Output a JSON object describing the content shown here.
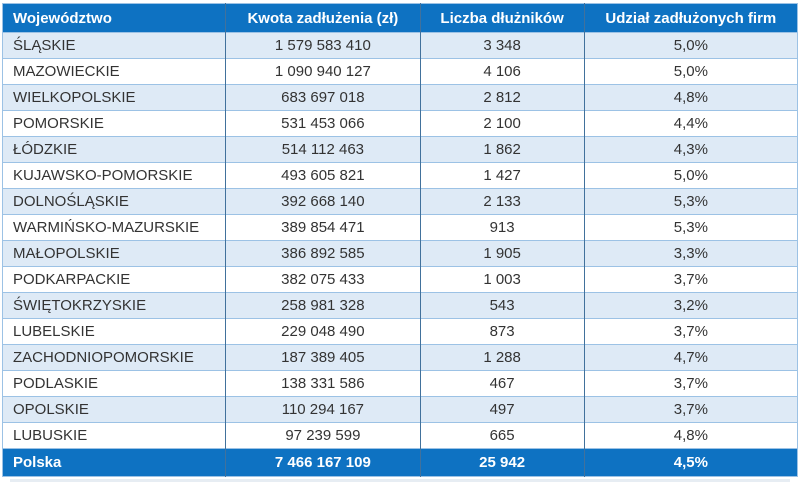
{
  "colors": {
    "header_bg": "#0e72c2",
    "footer_bg": "#0e72c2",
    "band_row_bg": "#deeaf6",
    "plain_row_bg": "#ffffff",
    "grid_horizontal": "#9cc2e5",
    "grid_vertical": "#41719c",
    "header_text": "#ffffff",
    "body_text": "#333333"
  },
  "table": {
    "columns": [
      "Województwo",
      "Kwota zadłużenia (zł)",
      "Liczba dłużników",
      "Udział zadłużonych firm"
    ],
    "rows": [
      {
        "name": "ŚLĄSKIE",
        "amount": "1 579 583 410",
        "debtors": "3 348",
        "share": "5,0%"
      },
      {
        "name": "MAZOWIECKIE",
        "amount": "1 090 940 127",
        "debtors": "4 106",
        "share": "5,0%"
      },
      {
        "name": "WIELKOPOLSKIE",
        "amount": "683 697 018",
        "debtors": "2 812",
        "share": "4,8%"
      },
      {
        "name": "POMORSKIE",
        "amount": "531 453 066",
        "debtors": "2 100",
        "share": "4,4%"
      },
      {
        "name": "ŁÓDZKIE",
        "amount": "514 112 463",
        "debtors": "1 862",
        "share": "4,3%"
      },
      {
        "name": "KUJAWSKO-POMORSKIE",
        "amount": "493 605 821",
        "debtors": "1 427",
        "share": "5,0%"
      },
      {
        "name": "DOLNOŚLĄSKIE",
        "amount": "392 668 140",
        "debtors": "2 133",
        "share": "5,3%"
      },
      {
        "name": "WARMIŃSKO-MAZURSKIE",
        "amount": "389 854 471",
        "debtors": "913",
        "share": "5,3%"
      },
      {
        "name": "MAŁOPOLSKIE",
        "amount": "386 892 585",
        "debtors": "1 905",
        "share": "3,3%"
      },
      {
        "name": "PODKARPACKIE",
        "amount": "382 075 433",
        "debtors": "1 003",
        "share": "3,7%"
      },
      {
        "name": "ŚWIĘTOKRZYSKIE",
        "amount": "258 981 328",
        "debtors": "543",
        "share": "3,2%"
      },
      {
        "name": "LUBELSKIE",
        "amount": "229 048 490",
        "debtors": "873",
        "share": "3,7%"
      },
      {
        "name": "ZACHODNIOPOMORSKIE",
        "amount": "187 389 405",
        "debtors": "1 288",
        "share": "4,7%"
      },
      {
        "name": "PODLASKIE",
        "amount": "138 331 586",
        "debtors": "467",
        "share": "3,7%"
      },
      {
        "name": "OPOLSKIE",
        "amount": "110 294 167",
        "debtors": "497",
        "share": "3,7%"
      },
      {
        "name": "LUBUSKIE",
        "amount": "97 239 599",
        "debtors": "665",
        "share": "4,8%"
      }
    ],
    "footer": {
      "name": "Polska",
      "amount": "7 466 167 109",
      "debtors": "25 942",
      "share": "4,5%"
    }
  },
  "chart_data": {
    "type": "table",
    "title": "",
    "columns": [
      "Województwo",
      "Kwota zadłużenia (zł)",
      "Liczba dłużników",
      "Udział zadłużonych firm"
    ],
    "rows": [
      [
        "ŚLĄSKIE",
        1579583410,
        3348,
        5.0
      ],
      [
        "MAZOWIECKIE",
        1090940127,
        4106,
        5.0
      ],
      [
        "WIELKOPOLSKIE",
        683697018,
        2812,
        4.8
      ],
      [
        "POMORSKIE",
        531453066,
        2100,
        4.4
      ],
      [
        "ŁÓDZKIE",
        514112463,
        1862,
        4.3
      ],
      [
        "KUJAWSKO-POMORSKIE",
        493605821,
        1427,
        5.0
      ],
      [
        "DOLNOŚLĄSKIE",
        392668140,
        2133,
        5.3
      ],
      [
        "WARMIŃSKO-MAZURSKIE",
        389854471,
        913,
        5.3
      ],
      [
        "MAŁOPOLSKIE",
        386892585,
        1905,
        3.3
      ],
      [
        "PODKARPACKIE",
        382075433,
        1003,
        3.7
      ],
      [
        "ŚWIĘTOKRZYSKIE",
        258981328,
        543,
        3.2
      ],
      [
        "LUBELSKIE",
        229048490,
        873,
        3.7
      ],
      [
        "ZACHODNIOPOMORSKIE",
        187389405,
        1288,
        4.7
      ],
      [
        "PODLASKIE",
        138331586,
        467,
        3.7
      ],
      [
        "OPOLSKIE",
        110294167,
        497,
        3.7
      ],
      [
        "LUBUSKIE",
        97239599,
        665,
        4.8
      ]
    ],
    "totals_row": [
      "Polska",
      7466167109,
      25942,
      4.5
    ],
    "notes": "share values shown as percent with comma decimal separator; amounts use space thousands separators"
  }
}
